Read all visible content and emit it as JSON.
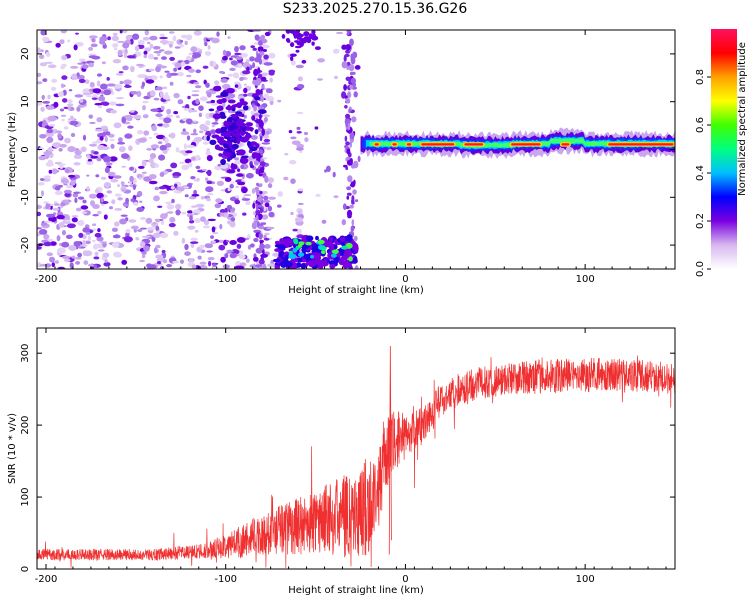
{
  "title": "S233.2025.270.15.36.G26",
  "chart_data": [
    {
      "type": "heatmap",
      "name": "spectrogram",
      "xlabel": "Height of straight line (km)",
      "ylabel": "Frequency (Hz)",
      "xlim": [
        -205,
        150
      ],
      "ylim": [
        -25,
        25
      ],
      "xticks": [
        -200,
        -100,
        0,
        100
      ],
      "yticks": [
        -20,
        -10,
        0,
        10,
        20
      ],
      "colorbar": {
        "label": "Normalized spectral amplitude",
        "range": [
          0,
          1
        ],
        "ticks": [
          0.0,
          0.2,
          0.4,
          0.6,
          0.8
        ],
        "tick_labels": [
          "0.0",
          "0.2",
          "0.4",
          "0.6",
          "0.8"
        ],
        "colors": [
          "#ffffff",
          "#d8b8f0",
          "#7a00e0",
          "#0000ff",
          "#00c0ff",
          "#00ff80",
          "#40ff00",
          "#ffff00",
          "#ffa000",
          "#ff0000",
          "#ff1060"
        ]
      },
      "features": [
        {
          "desc": "scattered low-amplitude noise",
          "x_range": [
            -205,
            -28
          ],
          "f_range": [
            -25,
            25
          ],
          "amplitude": 0.1
        },
        {
          "desc": "noise cluster",
          "x_center": -95,
          "f_center": 3,
          "amplitude": 0.25
        },
        {
          "desc": "noise band bottom",
          "x_range": [
            -72,
            -28
          ],
          "f_range": [
            -25,
            -18
          ],
          "amplitude": 0.35
        },
        {
          "desc": "signal carrier line",
          "x_range": [
            -25,
            150
          ],
          "f_center": 1,
          "amplitude": 0.9
        }
      ]
    },
    {
      "type": "line",
      "name": "snr",
      "xlabel": "Height of straight line (km)",
      "ylabel": "SNR (10 * v/v)",
      "xlim": [
        -205,
        150
      ],
      "ylim": [
        0,
        335
      ],
      "xticks": [
        -200,
        -100,
        0,
        100
      ],
      "yticks": [
        0,
        100,
        200,
        300
      ],
      "color": "#f03030",
      "trend": {
        "x": [
          -205,
          -140,
          -110,
          -90,
          -70,
          -50,
          -35,
          -25,
          -20,
          -15,
          -12,
          -8,
          -5,
          0,
          10,
          20,
          30,
          40,
          60,
          80,
          100,
          120,
          150
        ],
        "mean": [
          20,
          20,
          25,
          40,
          55,
          65,
          75,
          80,
          90,
          120,
          150,
          170,
          180,
          185,
          200,
          235,
          250,
          258,
          265,
          268,
          270,
          270,
          265
        ],
        "spread": [
          10,
          10,
          14,
          30,
          45,
          55,
          70,
          80,
          90,
          80,
          70,
          60,
          50,
          40,
          35,
          30,
          28,
          28,
          28,
          30,
          30,
          28,
          28
        ]
      }
    }
  ]
}
